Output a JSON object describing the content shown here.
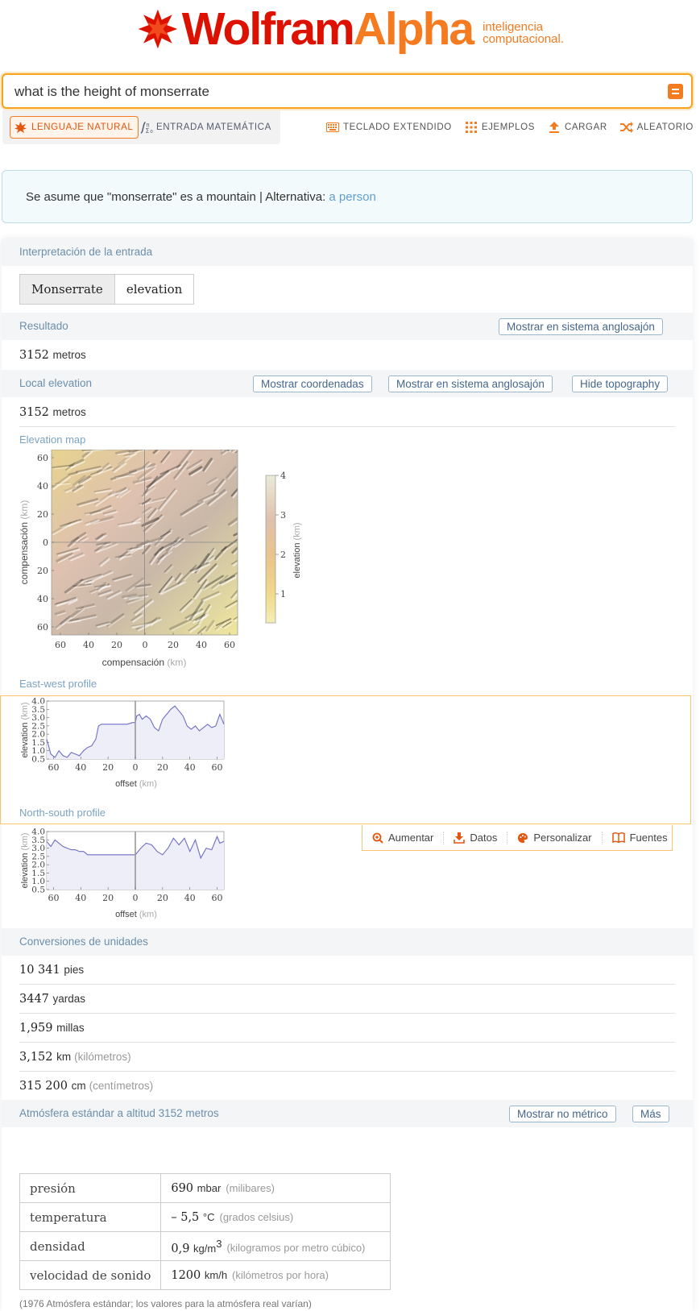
{
  "header": {
    "logo_wolfram": "Wolfram",
    "logo_alpha": "Alpha",
    "tagline_line1": "inteligencia",
    "tagline_line2": "computacional."
  },
  "search": {
    "query": "what is the height of monserrate"
  },
  "modes": {
    "natural": "LENGUAJE NATURAL",
    "math": "ENTRADA MATEMÁTICA"
  },
  "toolbar": {
    "keyboard": "TECLADO EXTENDIDO",
    "examples": "EJEMPLOS",
    "upload": "CARGAR",
    "random": "ALEATORIO"
  },
  "assumption": {
    "text": "Se asume que \"monserrate\" es a mountain | Alternativa: ",
    "alternative": "a person"
  },
  "pods": {
    "input": {
      "title": "Interpretación de la entrada",
      "tag1": "Monserrate",
      "tag2": "elevation"
    },
    "result": {
      "title": "Resultado",
      "button": "Mostrar en sistema anglosajón",
      "value": "3152",
      "unit": "metros"
    },
    "local": {
      "title": "Local elevation",
      "btn_coords": "Mostrar coordenadas",
      "btn_anglo": "Mostrar en sistema anglosajón",
      "btn_topo": "Hide topography",
      "value": "3152",
      "unit": "metros",
      "map_title": "Elevation map",
      "map_ylabel": "compensación",
      "map_xlabel": "compensación",
      "map_unit": "(km)",
      "map_ticks": [
        "60",
        "40",
        "20",
        "0",
        "20",
        "40",
        "60"
      ],
      "legend_label": "elevation",
      "legend_unit": "(km)",
      "legend_ticks": [
        "4",
        "3",
        "2",
        "1"
      ],
      "ew_title": "East-west profile",
      "ns_title": "North-south profile",
      "profile_ylabel": "elevation",
      "profile_xlabel": "offset",
      "profile_unit": "(km)",
      "profile_yticks": [
        "4.0",
        "3.5",
        "3.0",
        "2.5",
        "2.0",
        "1.5",
        "1.0",
        "0.5"
      ],
      "profile_xticks": [
        "60",
        "40",
        "20",
        "0",
        "20",
        "40",
        "60"
      ]
    },
    "tools": {
      "zoom": "Aumentar",
      "data": "Datos",
      "customize": "Personalizar",
      "sources": "Fuentes"
    },
    "conversions": {
      "title": "Conversiones de unidades",
      "items": [
        {
          "value": "10 341",
          "unit": "pies",
          "desc": ""
        },
        {
          "value": "3447",
          "unit": "yardas",
          "desc": ""
        },
        {
          "value": "1,959",
          "unit": "millas",
          "desc": ""
        },
        {
          "value": "3,152",
          "unit": "km",
          "desc": "(kilómetros)"
        },
        {
          "value": "315 200",
          "unit": "cm",
          "desc": "(centímetros)"
        }
      ]
    },
    "atmosphere": {
      "title": "Atmósfera estándar a altitud 3152 metros",
      "btn_nonmetric": "Mostrar no métrico",
      "btn_more": "Más",
      "rows": [
        {
          "key": "presión",
          "value": "690",
          "unit": "mbar",
          "desc": "(milibares)"
        },
        {
          "key": "temperatura",
          "value": "– 5,5",
          "unit": "°C",
          "desc": "(grados celsius)"
        },
        {
          "key": "densidad",
          "value": "0,9",
          "unit": "kg/m",
          "sup": "3",
          "desc": "(kilogramos por metro cúbico)"
        },
        {
          "key": "velocidad de sonido",
          "value": "1200",
          "unit": "km/h",
          "desc": "(kilómetros por hora)"
        }
      ],
      "footnote": "(1976 Atmósfera estándar; los valores para la atmósfera real varían)"
    }
  },
  "chart_data": [
    {
      "type": "line",
      "title": "East-west profile",
      "xlabel": "offset (km)",
      "ylabel": "elevation (km)",
      "xlim": [
        -65,
        65
      ],
      "ylim": [
        0.5,
        4.0
      ],
      "x": [
        -65,
        -62,
        -59,
        -56,
        -53,
        -50,
        -47,
        -44,
        -41,
        -38,
        -35,
        -32,
        -29,
        -27,
        -25,
        -22,
        -18,
        -14,
        -10,
        -6,
        -2,
        0,
        1,
        3,
        5,
        8,
        11,
        14,
        17,
        20,
        23,
        26,
        29,
        32,
        35,
        38,
        41,
        44,
        47,
        50,
        53,
        56,
        59,
        62,
        65
      ],
      "y": [
        1.7,
        0.8,
        0.6,
        1.0,
        0.7,
        0.6,
        0.9,
        0.8,
        0.7,
        1.0,
        1.2,
        1.3,
        1.7,
        2.5,
        2.6,
        2.6,
        2.6,
        2.6,
        2.6,
        2.6,
        2.7,
        2.7,
        3.1,
        3.2,
        2.9,
        3.1,
        2.9,
        2.4,
        2.2,
        2.9,
        3.2,
        3.5,
        3.7,
        3.4,
        3.1,
        2.5,
        2.3,
        2.5,
        2.2,
        2.4,
        2.6,
        2.4,
        2.5,
        3.2,
        2.6
      ]
    },
    {
      "type": "line",
      "title": "North-south profile",
      "xlabel": "offset (km)",
      "ylabel": "elevation (km)",
      "xlim": [
        -65,
        65
      ],
      "ylim": [
        0.5,
        4.0
      ],
      "x": [
        -65,
        -62,
        -59,
        -56,
        -53,
        -50,
        -47,
        -44,
        -41,
        -38,
        -35,
        -30,
        -25,
        -20,
        -15,
        -10,
        -5,
        0,
        4,
        8,
        12,
        16,
        20,
        24,
        28,
        32,
        36,
        40,
        44,
        48,
        52,
        56,
        60,
        62,
        65
      ],
      "y": [
        3.4,
        3.1,
        3.5,
        3.3,
        3.1,
        3.0,
        2.9,
        2.9,
        2.8,
        2.8,
        2.6,
        2.6,
        2.6,
        2.6,
        2.6,
        2.6,
        2.6,
        2.6,
        3.0,
        3.3,
        3.2,
        2.8,
        2.6,
        3.0,
        3.6,
        3.2,
        3.6,
        2.8,
        3.5,
        2.4,
        3.0,
        2.9,
        3.7,
        3.3,
        3.4
      ]
    }
  ]
}
